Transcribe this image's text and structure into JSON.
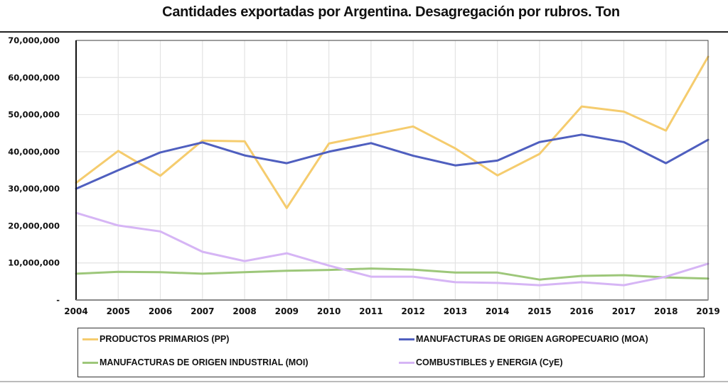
{
  "chart_data": {
    "type": "line",
    "title": "Cantidades exportadas por Argentina. Desagregación por rubros. Ton",
    "xlabel": "",
    "ylabel": "",
    "x": [
      "2004",
      "2005",
      "2006",
      "2007",
      "2008",
      "2009",
      "2010",
      "2011",
      "2012",
      "2013",
      "2014",
      "2015",
      "2016",
      "2017",
      "2018",
      "2019"
    ],
    "ylim": [
      0,
      70000000
    ],
    "yticks": [
      0,
      10000000,
      20000000,
      30000000,
      40000000,
      50000000,
      60000000,
      70000000
    ],
    "ytick_labels": [
      "-",
      "10,000,000",
      "20,000,000",
      "30,000,000",
      "40,000,000",
      "50,000,000",
      "60,000,000",
      "70,000,000"
    ],
    "grid": true,
    "legend_position": "bottom",
    "series": [
      {
        "name": "PRODUCTOS PRIMARIOS (PP)",
        "color": "#F5CC6E",
        "values": [
          31600000,
          40200000,
          33500000,
          43000000,
          42800000,
          24800000,
          42200000,
          44500000,
          46800000,
          40900000,
          33600000,
          39400000,
          52200000,
          50800000,
          45700000,
          65600000
        ]
      },
      {
        "name": "MANUFACTURAS DE ORIGEN AGROPECUARIO (MOA)",
        "color": "#4F5FBF",
        "values": [
          30000000,
          35000000,
          39800000,
          42500000,
          39000000,
          36900000,
          40000000,
          42300000,
          38900000,
          36300000,
          37600000,
          42600000,
          44600000,
          42600000,
          36900000,
          43200000
        ]
      },
      {
        "name": "MANUFACTURAS DE ORIGEN INDUSTRIAL (MOI)",
        "color": "#9DC77A",
        "values": [
          7100000,
          7600000,
          7500000,
          7100000,
          7500000,
          7900000,
          8100000,
          8500000,
          8200000,
          7400000,
          7400000,
          5500000,
          6500000,
          6700000,
          6100000,
          5800000
        ]
      },
      {
        "name": "COMBUSTIBLES y ENERGIA (CyE)",
        "color": "#D6B5F5",
        "values": [
          23500000,
          20100000,
          18500000,
          13000000,
          10500000,
          12600000,
          9300000,
          6300000,
          6300000,
          4800000,
          4600000,
          4000000,
          4800000,
          4000000,
          6300000,
          9800000
        ]
      }
    ]
  }
}
